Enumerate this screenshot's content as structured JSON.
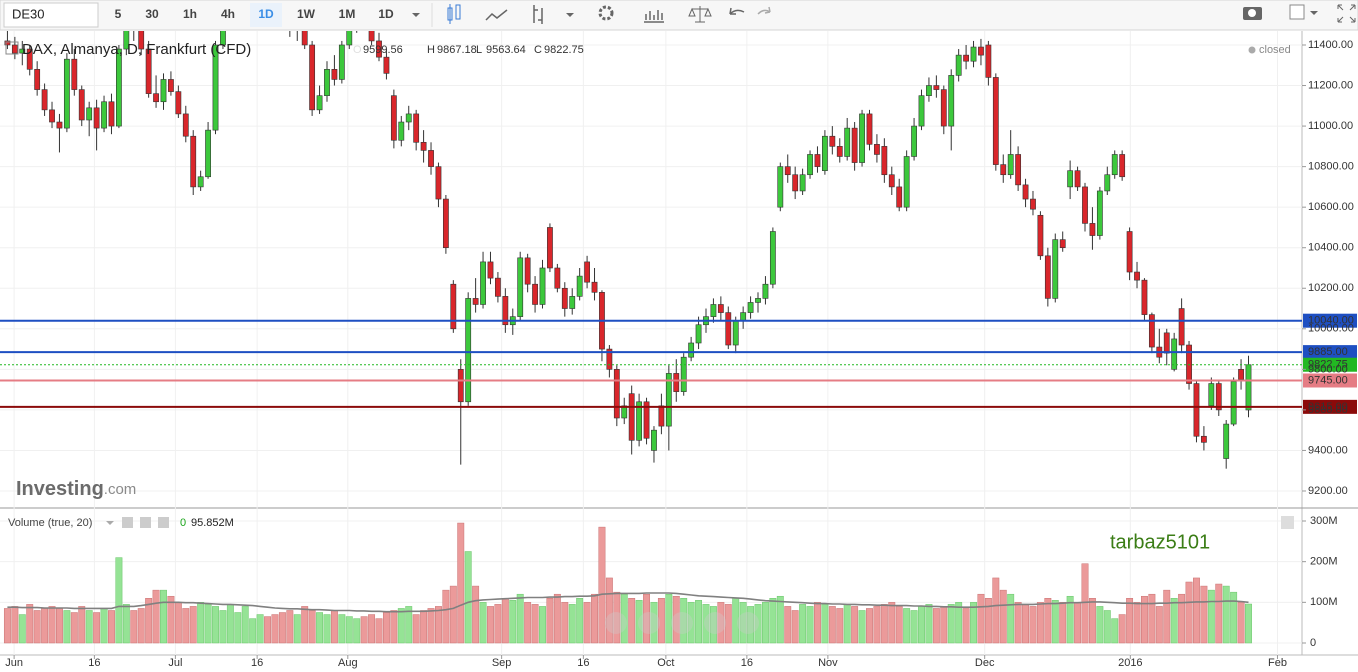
{
  "toolbar": {
    "symbol": "DE30",
    "intervals": [
      "5",
      "30",
      "1h",
      "4h",
      "1D",
      "1W",
      "1M"
    ],
    "range": "1D"
  },
  "chart_data": {
    "type": "candlestick",
    "title": "DAX, Almanya, D, Frankfurt (CFD)",
    "status": "closed",
    "ohlc_letters": [
      "O",
      "H",
      "L",
      "C"
    ],
    "watermark": {
      "brand": "Investing",
      "suffix": ".com"
    },
    "annotation": "tarbaz5101",
    "up_color": "#3cc83c",
    "down_color": "#d9262b",
    "xlim": [
      -1,
      174.2
    ],
    "xticks": [
      {
        "value": 0.9,
        "label": "Jun"
      },
      {
        "value": 11.7,
        "label": "16"
      },
      {
        "value": 22.6,
        "label": "Jul"
      },
      {
        "value": 33.6,
        "label": "16"
      },
      {
        "value": 45.8,
        "label": "Aug"
      },
      {
        "value": 66.5,
        "label": "Sep"
      },
      {
        "value": 77.5,
        "label": "16"
      },
      {
        "value": 88.6,
        "label": "Oct"
      },
      {
        "value": 99.5,
        "label": "16"
      },
      {
        "value": 110.4,
        "label": "Nov"
      },
      {
        "value": 131.5,
        "label": "Dec"
      },
      {
        "value": 151.1,
        "label": "2016"
      },
      {
        "value": 170.9,
        "label": "Feb"
      }
    ],
    "ylim": [
      9121,
      11469
    ],
    "yticks": [
      {
        "value": 9200,
        "label": "9200.00"
      },
      {
        "value": 9400,
        "label": "9400.00"
      },
      {
        "value": 9600,
        "label": "9600.00"
      },
      {
        "value": 9800,
        "label": "9800.00"
      },
      {
        "value": 10000,
        "label": "10000.00"
      },
      {
        "value": 10200,
        "label": "10200.00"
      },
      {
        "value": 10400,
        "label": "10400.00"
      },
      {
        "value": 10600,
        "label": "10600.00"
      },
      {
        "value": 10800,
        "label": "10800.00"
      },
      {
        "value": 11000,
        "label": "11000.00"
      },
      {
        "value": 11200,
        "label": "11200.00"
      },
      {
        "value": 11400,
        "label": "11400.00"
      }
    ],
    "grid": true,
    "levels": [
      {
        "value": 10040,
        "label": "10040.00",
        "color": "#1e4fc2",
        "style": "solid"
      },
      {
        "value": 9885,
        "label": "9885.00",
        "color": "#1e4fc2",
        "style": "solid"
      },
      {
        "value": 9822.75,
        "label": "9822.75",
        "color": "#22b822",
        "style": "dotted"
      },
      {
        "value": 9745,
        "label": "9745.00",
        "color": "#e57c84",
        "style": "solid"
      },
      {
        "value": 9615,
        "label": "9615.00",
        "color": "#8b0a0a",
        "style": "solid"
      }
    ],
    "open": [
      11420,
      11400,
      11360,
      11380,
      11280,
      11180,
      11080,
      11020,
      10990,
      11330,
      11180,
      11030,
      11090,
      10990,
      11120,
      11000,
      11380,
      11500,
      11480,
      11380,
      11160,
      11120,
      11230,
      11170,
      11060,
      10950,
      10700,
      10750,
      10980,
      11400,
      11520,
      11600,
      11650,
      11680,
      11700,
      11720,
      11640,
      11600,
      11560,
      11480,
      11520,
      11400,
      11080,
      11150,
      11280,
      11230,
      11400,
      11520,
      11560,
      11500,
      11420,
      11340,
      11150,
      10930,
      11020,
      11060,
      10920,
      10880,
      10800,
      10640,
      10220,
      9800,
      9640,
      10150,
      10120,
      10330,
      10250,
      10160,
      10020,
      10060,
      10350,
      10220,
      10120,
      10500,
      10300,
      10200,
      10100,
      10160,
      10330,
      10230,
      10180,
      9900,
      9800,
      9560,
      9680,
      9450,
      9640,
      9400,
      9620,
      9520,
      9780,
      9690,
      9860,
      9930,
      10020,
      10060,
      10120,
      10080,
      9920,
      10040,
      10080,
      10130,
      10150,
      10220,
      10600,
      10800,
      10760,
      10680,
      10760,
      10860,
      10780,
      10950,
      10900,
      10850,
      10990,
      10820,
      11060,
      10910,
      10900,
      10760,
      10700,
      10600,
      10850,
      11000,
      11150,
      11200,
      11180,
      11000,
      11250,
      11350,
      11320,
      11390,
      11400,
      11240,
      10810,
      10760,
      10860,
      10710,
      10640,
      10560,
      10360,
      10150,
      10440,
      10700,
      10780,
      10700,
      10520,
      10460,
      10680,
      10760,
      10860,
      10480,
      10280,
      10240,
      10070,
      9910,
      9980,
      9800,
      10100,
      9920,
      9730,
      9470,
      9620,
      9730,
      9360,
      9530,
      9800,
      9599.56
    ],
    "high": [
      11480,
      11440,
      11420,
      11400,
      11320,
      11210,
      11120,
      11060,
      11360,
      11380,
      11200,
      11120,
      11130,
      11150,
      11160,
      11400,
      11520,
      11560,
      11520,
      11420,
      11250,
      11260,
      11270,
      11200,
      11100,
      10980,
      10780,
      11020,
      11420,
      11560,
      11620,
      11700,
      11720,
      11760,
      11780,
      11800,
      11700,
      11660,
      11620,
      11560,
      11550,
      11420,
      11200,
      11320,
      11350,
      11420,
      11560,
      11600,
      11620,
      11540,
      11460,
      11380,
      11180,
      11050,
      11100,
      11080,
      10980,
      10920,
      10820,
      10660,
      10240,
      9850,
      10180,
      10250,
      10380,
      10380,
      10280,
      10200,
      10100,
      10380,
      10370,
      10260,
      10340,
      10520,
      10320,
      10230,
      10200,
      10300,
      10360,
      10300,
      10190,
      9920,
      9820,
      9660,
      9720,
      9680,
      9660,
      9520,
      9680,
      9820,
      9850,
      9880,
      9960,
      10060,
      10100,
      10150,
      10160,
      10110,
      10060,
      10110,
      10160,
      10180,
      10260,
      10500,
      10820,
      10860,
      10800,
      10790,
      10880,
      10900,
      10980,
      11000,
      10940,
      11040,
      11020,
      11080,
      11080,
      10960,
      10940,
      10800,
      10740,
      10880,
      11040,
      11180,
      11240,
      11250,
      11200,
      11280,
      11380,
      11400,
      11420,
      11430,
      11420,
      11260,
      10860,
      10980,
      10900,
      10740,
      10680,
      10580,
      10400,
      10470,
      10480,
      10830,
      10800,
      10720,
      10600,
      10700,
      10800,
      10880,
      10880,
      10500,
      10330,
      10250,
      10080,
      10000,
      10000,
      9980,
      10150,
      9940,
      9740,
      9520,
      9760,
      9750,
      9550,
      9760,
      9850,
      9867.18
    ],
    "low": [
      11380,
      11330,
      11300,
      11250,
      11150,
      11050,
      10990,
      10870,
      10970,
      11150,
      11000,
      10950,
      10880,
      10970,
      10960,
      10990,
      11350,
      11420,
      11350,
      11140,
      11090,
      11080,
      11150,
      11040,
      10920,
      10660,
      10680,
      10740,
      10960,
      11380,
      11480,
      11560,
      11600,
      11620,
      11640,
      11600,
      11560,
      11520,
      11440,
      11420,
      11380,
      11050,
      11060,
      11120,
      11200,
      11210,
      11380,
      11460,
      11480,
      11400,
      11320,
      11230,
      10890,
      10900,
      10980,
      10880,
      10820,
      10760,
      10600,
      10370,
      9980,
      9330,
      9620,
      10080,
      10100,
      10220,
      10130,
      9980,
      9970,
      10040,
      10180,
      10080,
      10100,
      10280,
      10180,
      10060,
      10070,
      10140,
      10200,
      10140,
      9840,
      9760,
      9520,
      9530,
      9380,
      9420,
      9430,
      9340,
      9480,
      9400,
      9640,
      9670,
      9840,
      9900,
      9980,
      10030,
      10040,
      9900,
      9880,
      10000,
      10050,
      10080,
      10120,
      10200,
      10580,
      10720,
      10640,
      10660,
      10740,
      10770,
      10760,
      10860,
      10820,
      10830,
      10780,
      10800,
      10880,
      10820,
      10720,
      10660,
      10580,
      10580,
      10830,
      10980,
      11120,
      11140,
      10960,
      10880,
      11220,
      11280,
      11290,
      11300,
      11200,
      10780,
      10720,
      10740,
      10680,
      10600,
      10560,
      10340,
      10110,
      10130,
      10380,
      10640,
      10680,
      10480,
      10390,
      10440,
      10660,
      10740,
      10730,
      10240,
      10200,
      10040,
      9880,
      9830,
      9820,
      9790,
      9880,
      9700,
      9440,
      9400,
      9600,
      9570,
      9310,
      9520,
      9700,
      9563.64
    ],
    "close": [
      11400,
      11360,
      11380,
      11280,
      11180,
      11080,
      11020,
      10990,
      11330,
      11180,
      11030,
      11090,
      10990,
      11120,
      11000,
      11380,
      11500,
      11480,
      11380,
      11160,
      11120,
      11230,
      11170,
      11060,
      10950,
      10700,
      10750,
      10980,
      11400,
      11520,
      11600,
      11650,
      11680,
      11700,
      11720,
      11640,
      11600,
      11560,
      11480,
      11520,
      11400,
      11080,
      11150,
      11280,
      11230,
      11400,
      11520,
      11560,
      11500,
      11420,
      11340,
      11260,
      10930,
      11020,
      11060,
      10920,
      10880,
      10800,
      10640,
      10400,
      10000,
      9640,
      10150,
      10120,
      10330,
      10250,
      10160,
      10020,
      10060,
      10350,
      10220,
      10120,
      10300,
      10300,
      10200,
      10100,
      10160,
      10260,
      10230,
      10180,
      9900,
      9800,
      9560,
      9620,
      9450,
      9640,
      9460,
      9500,
      9520,
      9780,
      9690,
      9860,
      9930,
      10020,
      10060,
      10120,
      10080,
      9920,
      10040,
      10080,
      10130,
      10150,
      10220,
      10480,
      10800,
      10760,
      10680,
      10760,
      10860,
      10800,
      10950,
      10900,
      10850,
      10990,
      10820,
      11060,
      10910,
      10860,
      10760,
      10700,
      10600,
      10850,
      11000,
      11150,
      11200,
      11180,
      11000,
      11250,
      11350,
      11320,
      11390,
      11350,
      11240,
      10810,
      10760,
      10860,
      10710,
      10640,
      10590,
      10360,
      10150,
      10440,
      10400,
      10780,
      10700,
      10520,
      10460,
      10680,
      10760,
      10860,
      10750,
      10280,
      10240,
      10070,
      9910,
      9860,
      9880,
      9950,
      9920,
      9730,
      9470,
      9440,
      9730,
      9600,
      9530,
      9740,
      9750,
      9822.75
    ],
    "volume": {
      "title": "Volume (true, 20)",
      "current_prefix": "0",
      "current": {
        "value": 95.852,
        "label": "95.852M"
      },
      "up_color": "#95e395",
      "down_color": "#eb9a9a",
      "ma_color": "#808080",
      "ylim": [
        -29.5,
        324.6
      ],
      "yticks": [
        0,
        {
          "value": 100,
          "label": "100M"
        },
        {
          "value": 200,
          "label": "200M"
        },
        {
          "value": 300,
          "label": "300M"
        }
      ],
      "values": [
        85,
        90,
        70,
        95,
        80,
        85,
        90,
        85,
        80,
        75,
        90,
        80,
        75,
        85,
        80,
        210,
        95,
        80,
        85,
        110,
        130,
        130,
        115,
        100,
        85,
        90,
        100,
        95,
        90,
        80,
        95,
        75,
        90,
        60,
        70,
        65,
        70,
        75,
        80,
        70,
        90,
        80,
        75,
        70,
        80,
        70,
        65,
        60,
        65,
        70,
        60,
        75,
        80,
        85,
        90,
        70,
        80,
        85,
        90,
        130,
        140,
        295,
        225,
        140,
        100,
        90,
        95,
        110,
        105,
        120,
        100,
        95,
        90,
        110,
        120,
        100,
        95,
        110,
        100,
        120,
        285,
        160,
        125,
        120,
        110,
        105,
        120,
        100,
        110,
        120,
        115,
        110,
        100,
        105,
        95,
        90,
        100,
        95,
        110,
        100,
        90,
        95,
        100,
        110,
        115,
        90,
        80,
        95,
        90,
        100,
        95,
        90,
        85,
        95,
        90,
        80,
        85,
        90,
        95,
        100,
        90,
        85,
        80,
        90,
        95,
        85,
        90,
        95,
        100,
        85,
        100,
        120,
        110,
        160,
        130,
        120,
        100,
        95,
        90,
        100,
        110,
        105,
        100,
        115,
        100,
        195,
        110,
        90,
        80,
        60,
        70,
        110,
        100,
        115,
        120,
        90,
        130,
        110,
        120,
        150,
        160,
        140,
        130,
        145,
        140,
        125,
        100,
        95.852
      ],
      "ma": [
        88,
        88,
        87,
        87,
        87,
        86,
        86,
        86,
        86,
        85,
        85,
        85,
        85,
        85,
        85,
        90,
        90,
        90,
        92,
        95,
        98,
        100,
        100,
        100,
        99,
        99,
        98,
        97,
        96,
        95,
        95,
        94,
        93,
        92,
        90,
        88,
        86,
        85,
        84,
        84,
        83,
        82,
        82,
        81,
        80,
        80,
        80,
        79,
        79,
        78,
        78,
        77,
        77,
        77,
        78,
        78,
        78,
        79,
        80,
        82,
        85,
        93,
        100,
        104,
        106,
        107,
        108,
        109,
        110,
        111,
        112,
        112,
        112,
        113,
        113,
        114,
        114,
        115,
        115,
        116,
        120,
        121,
        122,
        122,
        122,
        122,
        123,
        123,
        123,
        123,
        122,
        120,
        118,
        116,
        115,
        114,
        113,
        112,
        111,
        110,
        108,
        106,
        104,
        103,
        102,
        101,
        100,
        99,
        98,
        97,
        97,
        96,
        96,
        95,
        95,
        94,
        94,
        93,
        93,
        92,
        92,
        92,
        91,
        91,
        90,
        90,
        89,
        89,
        88,
        88,
        88,
        89,
        90,
        92,
        93,
        94,
        95,
        95,
        95,
        96,
        97,
        97,
        98,
        99,
        99,
        100,
        101,
        101,
        100,
        99,
        98,
        98,
        97,
        97,
        97,
        98,
        98,
        99,
        99,
        100,
        101,
        101,
        102,
        102,
        103,
        103,
        102,
        100
      ]
    }
  }
}
